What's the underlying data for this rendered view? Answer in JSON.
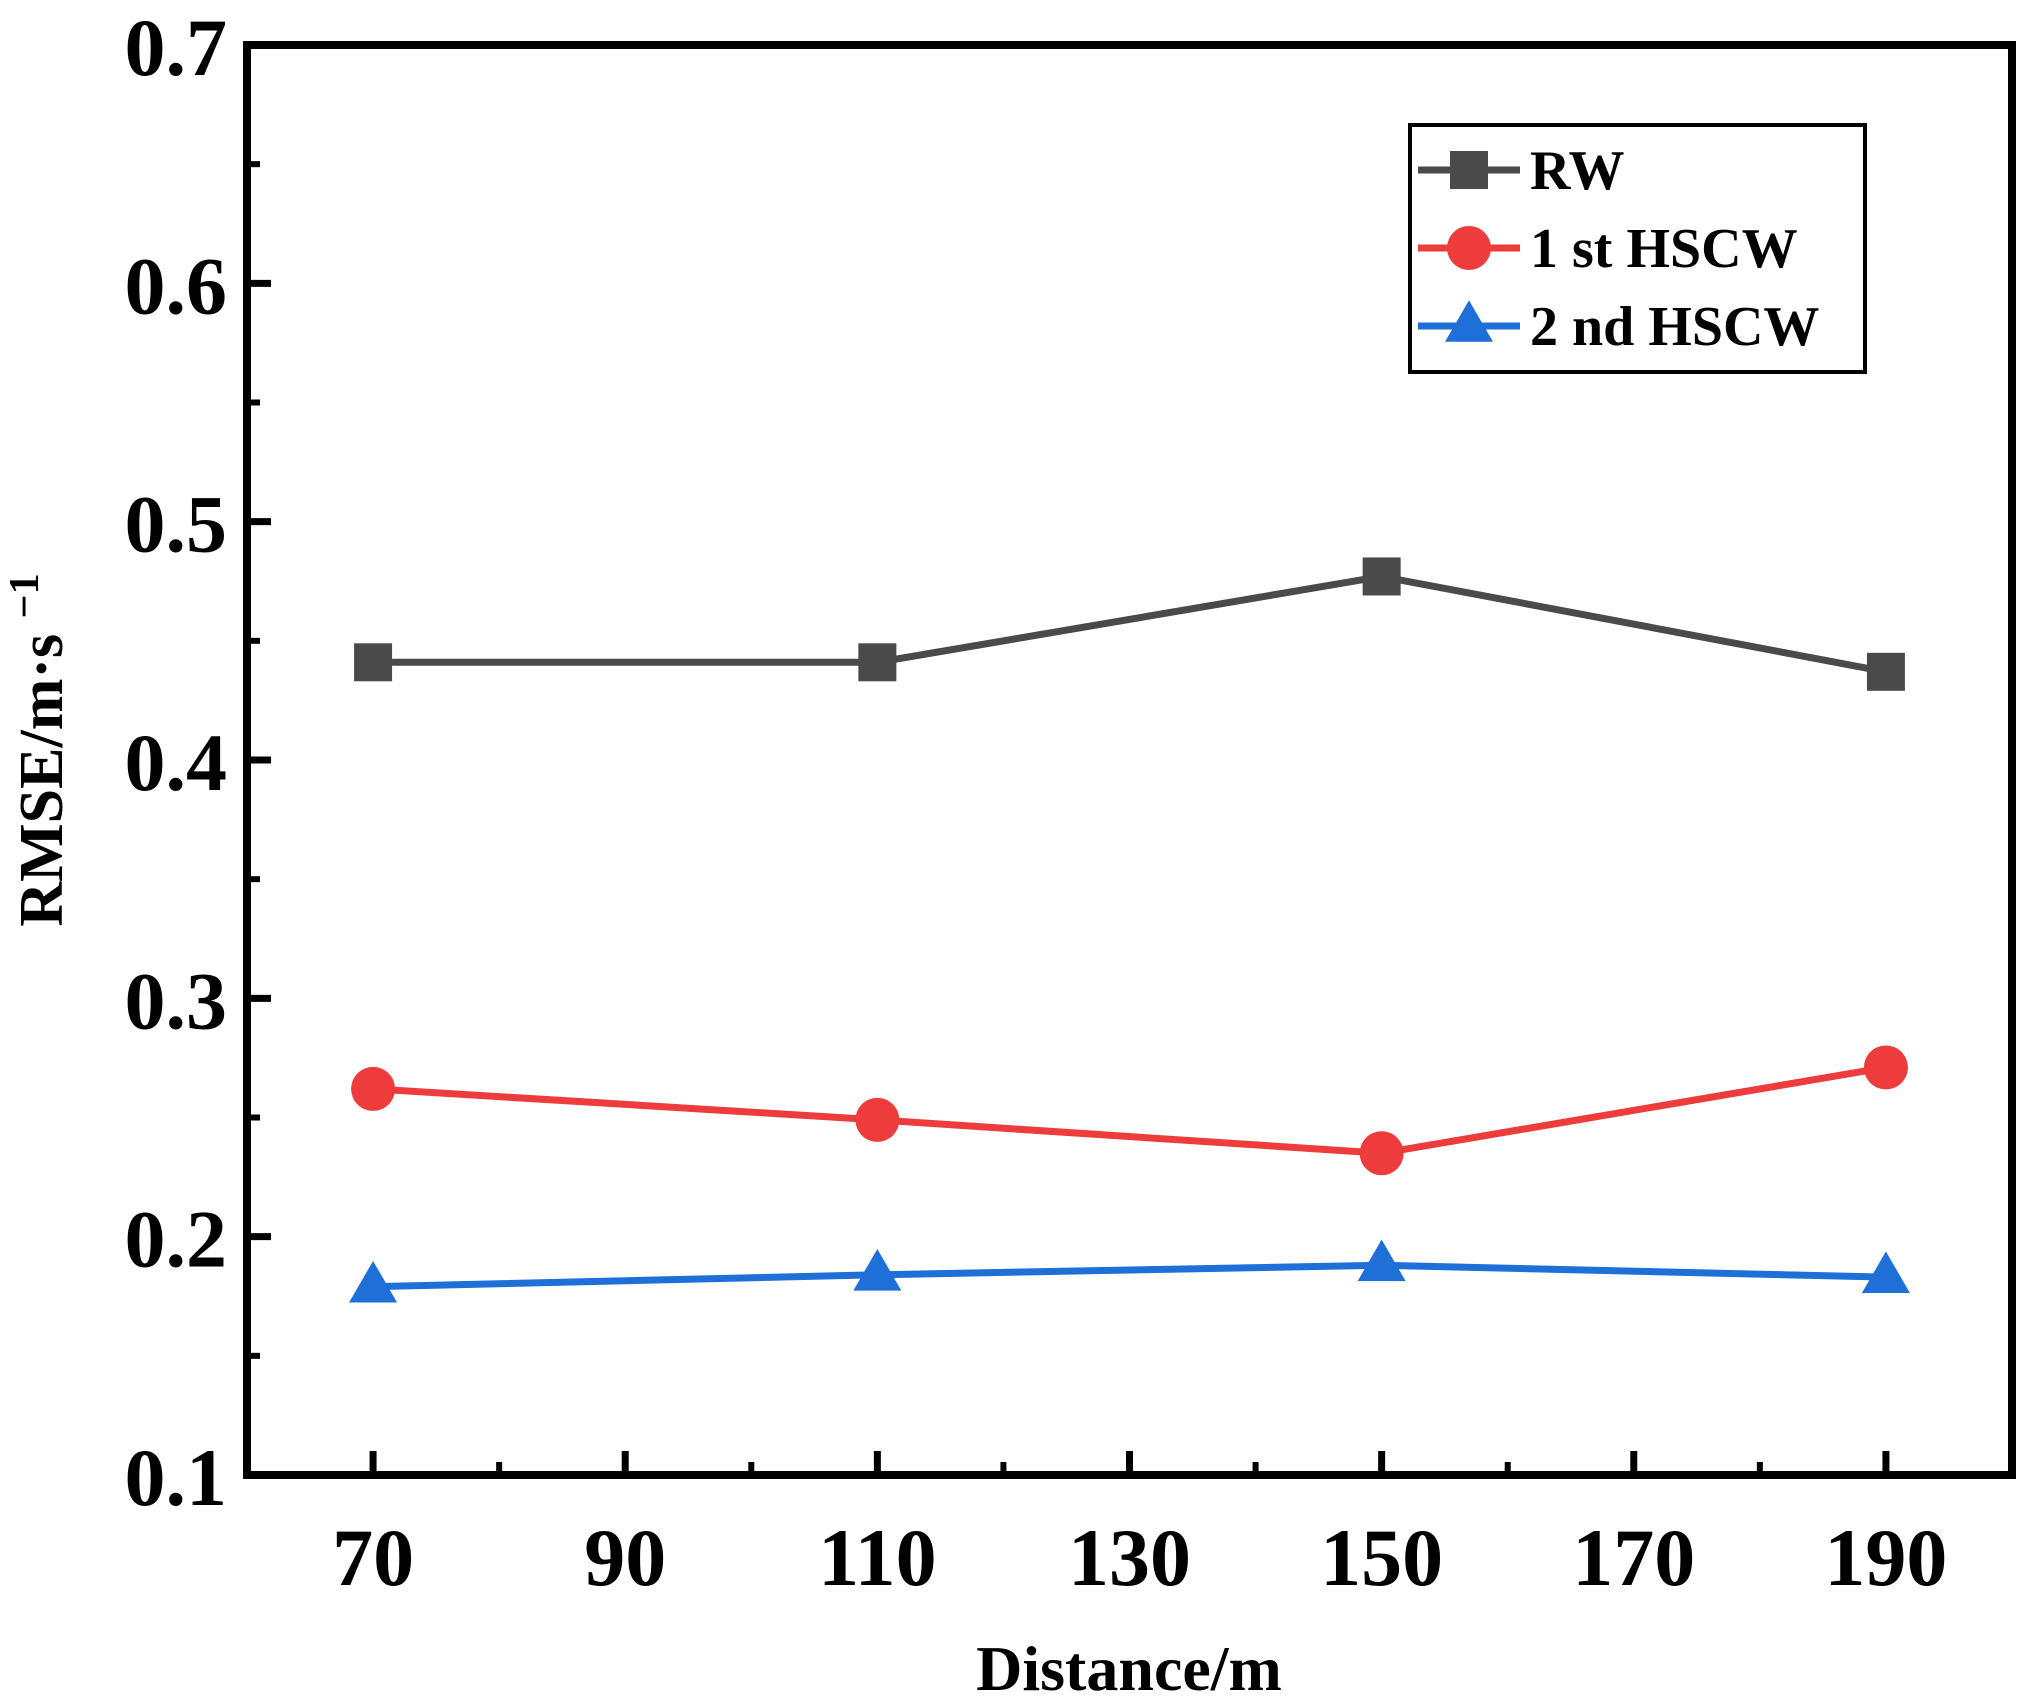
{
  "chart_data": {
    "type": "line",
    "title": "",
    "xlabel": "Distance/m",
    "ylabel": "RMSE/m·s",
    "ylabel_superscript": "−1",
    "x": [
      70,
      110,
      150,
      190
    ],
    "xlim": [
      60,
      200
    ],
    "ylim": [
      0.1,
      0.7
    ],
    "xticks": [
      70,
      90,
      110,
      130,
      150,
      170,
      190
    ],
    "xtick_labels": [
      "70",
      "90",
      "110",
      "130",
      "150",
      "170",
      "190"
    ],
    "yticks": [
      0.1,
      0.2,
      0.3,
      0.4,
      0.5,
      0.6,
      0.7
    ],
    "ytick_labels": [
      "0.1",
      "0.2",
      "0.3",
      "0.4",
      "0.5",
      "0.6",
      "0.7"
    ],
    "legend_position": "top-right",
    "grid": false,
    "series": [
      {
        "name": "RW",
        "marker": "square",
        "color": "#4a4a4a",
        "values": [
          0.441,
          0.441,
          0.477,
          0.437
        ]
      },
      {
        "name": "1 st HSCW",
        "marker": "circle",
        "color": "#ee3b3b",
        "values": [
          0.262,
          0.249,
          0.235,
          0.271
        ]
      },
      {
        "name": "2 nd HSCW",
        "marker": "triangle",
        "color": "#1f6fd8",
        "values": [
          0.179,
          0.184,
          0.188,
          0.183
        ]
      }
    ]
  }
}
